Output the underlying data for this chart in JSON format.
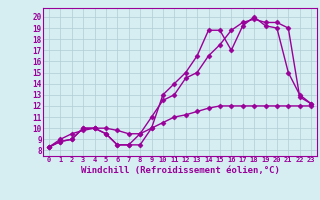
{
  "background_color": "#d6eef2",
  "line_color": "#990099",
  "marker": "D",
  "markersize": 2.5,
  "linewidth": 1.0,
  "xlabel": "Windchill (Refroidissement éolien,°C)",
  "xlabel_fontsize": 6.5,
  "ylabel_vals": [
    8,
    9,
    10,
    11,
    12,
    13,
    14,
    15,
    16,
    17,
    18,
    19,
    20
  ],
  "xlim": [
    -0.5,
    23.5
  ],
  "ylim": [
    7.5,
    20.8
  ],
  "xtick_labels": [
    "0",
    "1",
    "2",
    "3",
    "4",
    "5",
    "6",
    "7",
    "8",
    "9",
    "10",
    "11",
    "12",
    "13",
    "14",
    "15",
    "16",
    "17",
    "18",
    "19",
    "20",
    "21",
    "22",
    "23"
  ],
  "grid_color": "#b0cdd4",
  "series": [
    [
      8.3,
      8.8,
      9.0,
      10.0,
      10.0,
      9.5,
      8.5,
      8.5,
      8.5,
      10.0,
      13.0,
      14.0,
      15.0,
      16.5,
      18.8,
      18.8,
      17.0,
      19.2,
      20.0,
      19.2,
      19.0,
      15.0,
      13.0,
      12.2
    ],
    [
      8.3,
      8.8,
      9.0,
      10.0,
      10.0,
      9.5,
      8.5,
      8.5,
      9.5,
      11.0,
      12.5,
      13.0,
      14.5,
      15.0,
      16.5,
      17.5,
      18.8,
      19.5,
      19.8,
      19.5,
      19.5,
      19.0,
      12.8,
      12.2
    ],
    [
      8.3,
      9.0,
      9.5,
      9.8,
      10.0,
      10.0,
      9.8,
      9.5,
      9.5,
      10.0,
      10.5,
      11.0,
      11.2,
      11.5,
      11.8,
      12.0,
      12.0,
      12.0,
      12.0,
      12.0,
      12.0,
      12.0,
      12.0,
      12.0
    ]
  ]
}
